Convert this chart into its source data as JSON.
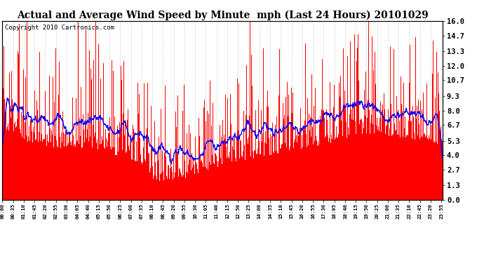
{
  "title": "Actual and Average Wind Speed by Minute  mph (Last 24 Hours) 20101029",
  "copyright_text": "Copyright 2010 Cartronics.com",
  "ylabel_right": [
    "16.0",
    "14.7",
    "13.3",
    "12.0",
    "10.7",
    "9.3",
    "8.0",
    "6.7",
    "5.3",
    "4.0",
    "2.7",
    "1.3",
    "0.0"
  ],
  "yticks": [
    16.0,
    14.7,
    13.3,
    12.0,
    10.7,
    9.3,
    8.0,
    6.7,
    5.3,
    4.0,
    2.7,
    1.3,
    0.0
  ],
  "ylim": [
    0.0,
    16.0
  ],
  "bar_color": "#ff0000",
  "line_color": "#0000ff",
  "background_color": "#ffffff",
  "grid_color": "#bbbbbb",
  "title_fontsize": 10,
  "copyright_fontsize": 6.5,
  "tick_interval_minutes": 35
}
